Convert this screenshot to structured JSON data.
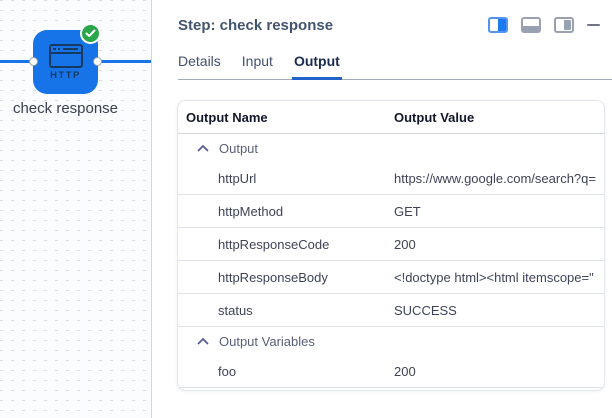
{
  "canvas": {
    "node": {
      "label": "check response",
      "type": "HTTP",
      "status_icon": "success-check-badge",
      "icons": [
        "browser-window-icon"
      ],
      "colors": {
        "node_blue": "#1774e8",
        "icon_navy": "#163a5e",
        "badge_green": "#2aa74a",
        "line_blue": "#1a73e8"
      }
    }
  },
  "panel": {
    "title": "Step: check response",
    "window_controls": [
      {
        "icon": "layout-split-icon",
        "active": true
      },
      {
        "icon": "layout-bottom-icon",
        "active": false
      },
      {
        "icon": "layout-right-icon",
        "active": false
      },
      {
        "icon": "minimize-icon",
        "active": false
      }
    ],
    "tabs": [
      {
        "label": "Details",
        "active": false
      },
      {
        "label": "Input",
        "active": false
      },
      {
        "label": "Output",
        "active": true
      }
    ],
    "table": {
      "columns": [
        "Output Name",
        "Output Value"
      ],
      "groups": [
        {
          "label": "Output",
          "expanded": true,
          "rows": [
            {
              "name": "httpUrl",
              "value": "https://www.google.com/search?q="
            },
            {
              "name": "httpMethod",
              "value": "GET"
            },
            {
              "name": "httpResponseCode",
              "value": "200"
            },
            {
              "name": "httpResponseBody",
              "value": "<!doctype html><html itemscope=\""
            },
            {
              "name": "status",
              "value": "SUCCESS"
            }
          ]
        },
        {
          "label": "Output Variables",
          "expanded": true,
          "rows": [
            {
              "name": "foo",
              "value": "200"
            }
          ]
        }
      ]
    },
    "colors": {
      "accent_underline": "#2263c9",
      "chevron_purple": "#575d90"
    }
  }
}
